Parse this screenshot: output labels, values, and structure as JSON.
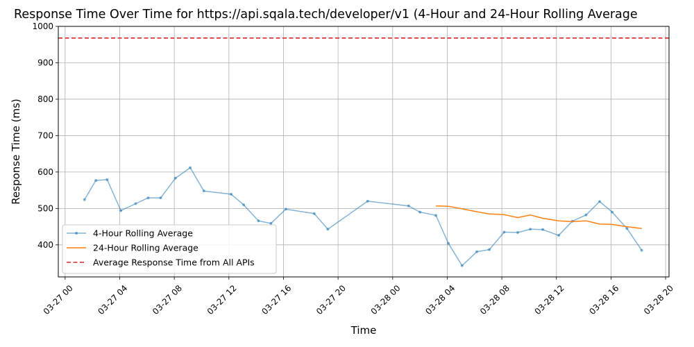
{
  "chart_data": {
    "type": "line",
    "title": "Response Time Over Time for https://api.sqala.tech/developer/v1 (4-Hour and 24-Hour Rolling Average",
    "xlabel": "Time",
    "ylabel": "Response Time (ms)",
    "xlim": [
      "2024-03-26 23:30",
      "2024-03-28 20:15"
    ],
    "ylim": [
      312,
      1000
    ],
    "x_ticks": [
      {
        "t": "2024-03-27 00:00",
        "label": "03-27 00"
      },
      {
        "t": "2024-03-27 04:00",
        "label": "03-27 04"
      },
      {
        "t": "2024-03-27 08:00",
        "label": "03-27 08"
      },
      {
        "t": "2024-03-27 12:00",
        "label": "03-27 12"
      },
      {
        "t": "2024-03-27 16:00",
        "label": "03-27 16"
      },
      {
        "t": "2024-03-27 20:00",
        "label": "03-27 20"
      },
      {
        "t": "2024-03-28 00:00",
        "label": "03-28 00"
      },
      {
        "t": "2024-03-28 04:00",
        "label": "03-28 04"
      },
      {
        "t": "2024-03-28 08:00",
        "label": "03-28 08"
      },
      {
        "t": "2024-03-28 12:00",
        "label": "03-28 12"
      },
      {
        "t": "2024-03-28 16:00",
        "label": "03-28 16"
      },
      {
        "t": "2024-03-28 20:00",
        "label": "03-28 20"
      }
    ],
    "y_ticks": [
      400,
      500,
      600,
      700,
      800,
      900,
      1000
    ],
    "grid": true,
    "legend_position": "lower-left",
    "series": [
      {
        "name": "4-Hour Rolling Average",
        "color": "#1f77b4",
        "alpha": 0.55,
        "marker": "dot",
        "points": [
          {
            "t": "2024-03-27 01:25",
            "y": 524
          },
          {
            "t": "2024-03-27 02:15",
            "y": 577
          },
          {
            "t": "2024-03-27 03:05",
            "y": 579
          },
          {
            "t": "2024-03-27 04:05",
            "y": 494
          },
          {
            "t": "2024-03-27 05:10",
            "y": 513
          },
          {
            "t": "2024-03-27 06:05",
            "y": 529
          },
          {
            "t": "2024-03-27 07:00",
            "y": 529
          },
          {
            "t": "2024-03-27 08:05",
            "y": 583
          },
          {
            "t": "2024-03-27 09:10",
            "y": 612
          },
          {
            "t": "2024-03-27 10:10",
            "y": 548
          },
          {
            "t": "2024-03-27 12:10",
            "y": 539
          },
          {
            "t": "2024-03-27 13:05",
            "y": 510
          },
          {
            "t": "2024-03-27 14:10",
            "y": 466
          },
          {
            "t": "2024-03-27 15:05",
            "y": 459
          },
          {
            "t": "2024-03-27 16:10",
            "y": 498
          },
          {
            "t": "2024-03-27 18:15",
            "y": 486
          },
          {
            "t": "2024-03-27 19:15",
            "y": 443
          },
          {
            "t": "2024-03-27 22:10",
            "y": 520
          },
          {
            "t": "2024-03-28 01:10",
            "y": 507
          },
          {
            "t": "2024-03-28 02:00",
            "y": 490
          },
          {
            "t": "2024-03-28 03:10",
            "y": 481
          },
          {
            "t": "2024-03-28 04:05",
            "y": 404
          },
          {
            "t": "2024-03-28 05:05",
            "y": 343
          },
          {
            "t": "2024-03-28 06:10",
            "y": 381
          },
          {
            "t": "2024-03-28 07:05",
            "y": 387
          },
          {
            "t": "2024-03-28 08:10",
            "y": 435
          },
          {
            "t": "2024-03-28 09:10",
            "y": 434
          },
          {
            "t": "2024-03-28 10:05",
            "y": 443
          },
          {
            "t": "2024-03-28 11:00",
            "y": 442
          },
          {
            "t": "2024-03-28 12:10",
            "y": 426
          },
          {
            "t": "2024-03-28 13:10",
            "y": 465
          },
          {
            "t": "2024-03-28 14:10",
            "y": 482
          },
          {
            "t": "2024-03-28 15:10",
            "y": 519
          },
          {
            "t": "2024-03-28 16:05",
            "y": 490
          },
          {
            "t": "2024-03-28 17:10",
            "y": 445
          },
          {
            "t": "2024-03-28 18:15",
            "y": 385
          }
        ]
      },
      {
        "name": "24-Hour Rolling Average",
        "color": "#ff7f0e",
        "alpha": 1,
        "marker": "none",
        "points": [
          {
            "t": "2024-03-28 03:10",
            "y": 507
          },
          {
            "t": "2024-03-28 04:05",
            "y": 506
          },
          {
            "t": "2024-03-28 05:05",
            "y": 499
          },
          {
            "t": "2024-03-28 06:10",
            "y": 491
          },
          {
            "t": "2024-03-28 07:05",
            "y": 485
          },
          {
            "t": "2024-03-28 08:10",
            "y": 483
          },
          {
            "t": "2024-03-28 09:10",
            "y": 475
          },
          {
            "t": "2024-03-28 10:05",
            "y": 482
          },
          {
            "t": "2024-03-28 11:00",
            "y": 473
          },
          {
            "t": "2024-03-28 12:10",
            "y": 466
          },
          {
            "t": "2024-03-28 13:10",
            "y": 464
          },
          {
            "t": "2024-03-28 14:10",
            "y": 466
          },
          {
            "t": "2024-03-28 15:10",
            "y": 457
          },
          {
            "t": "2024-03-28 16:05",
            "y": 456
          },
          {
            "t": "2024-03-28 17:10",
            "y": 450
          },
          {
            "t": "2024-03-28 18:15",
            "y": 445
          }
        ]
      }
    ],
    "reference_lines": [
      {
        "name": "Average Response Time from All APIs",
        "y": 968,
        "color": "#d62728",
        "style": "dashed"
      }
    ]
  }
}
